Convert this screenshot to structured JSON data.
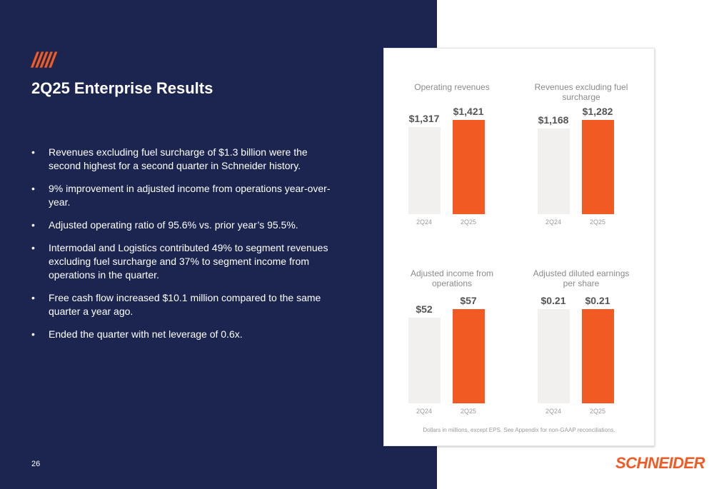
{
  "slide": {
    "slashes": "/////",
    "title": "2Q25 Enterprise Results",
    "page_number": "26",
    "logo_text": "SCHNEIDER",
    "colors": {
      "navy": "#1b2550",
      "orange": "#f15a22",
      "prior_bar": "#f1f0ee"
    }
  },
  "bullets": [
    "Revenues excluding fuel surcharge of $1.3 billion were the second highest for a second quarter in Schneider history.",
    "9% improvement in adjusted income from operations year-over-year.",
    "Adjusted operating ratio of 95.6% vs. prior year’s 95.5%.",
    "Intermodal and Logistics contributed 49% to segment revenues excluding fuel surcharge and 37% to segment income from operations in the quarter.",
    "Free cash flow increased $10.1 million compared to the same quarter a year ago.",
    "Ended the quarter with net leverage of 0.6x."
  ],
  "chart_footnote": "Dollars in millions, except EPS. See Appendix for non-GAAP reconciliations.",
  "chart_data": [
    {
      "type": "bar",
      "title": "Operating revenues",
      "categories": [
        "2Q24",
        "2Q25"
      ],
      "values": [
        1317,
        1421
      ],
      "labels": [
        "$1,317",
        "$1,421"
      ]
    },
    {
      "type": "bar",
      "title": "Revenues excluding fuel surcharge",
      "categories": [
        "2Q24",
        "2Q25"
      ],
      "values": [
        1168,
        1282
      ],
      "labels": [
        "$1,168",
        "$1,282"
      ]
    },
    {
      "type": "bar",
      "title": "Adjusted income from operations",
      "categories": [
        "2Q24",
        "2Q25"
      ],
      "values": [
        52,
        57
      ],
      "labels": [
        "$52",
        "$57"
      ]
    },
    {
      "type": "bar",
      "title": "Adjusted diluted earnings per share",
      "categories": [
        "2Q24",
        "2Q25"
      ],
      "values": [
        0.21,
        0.21
      ],
      "labels": [
        "$0.21",
        "$0.21"
      ]
    }
  ]
}
